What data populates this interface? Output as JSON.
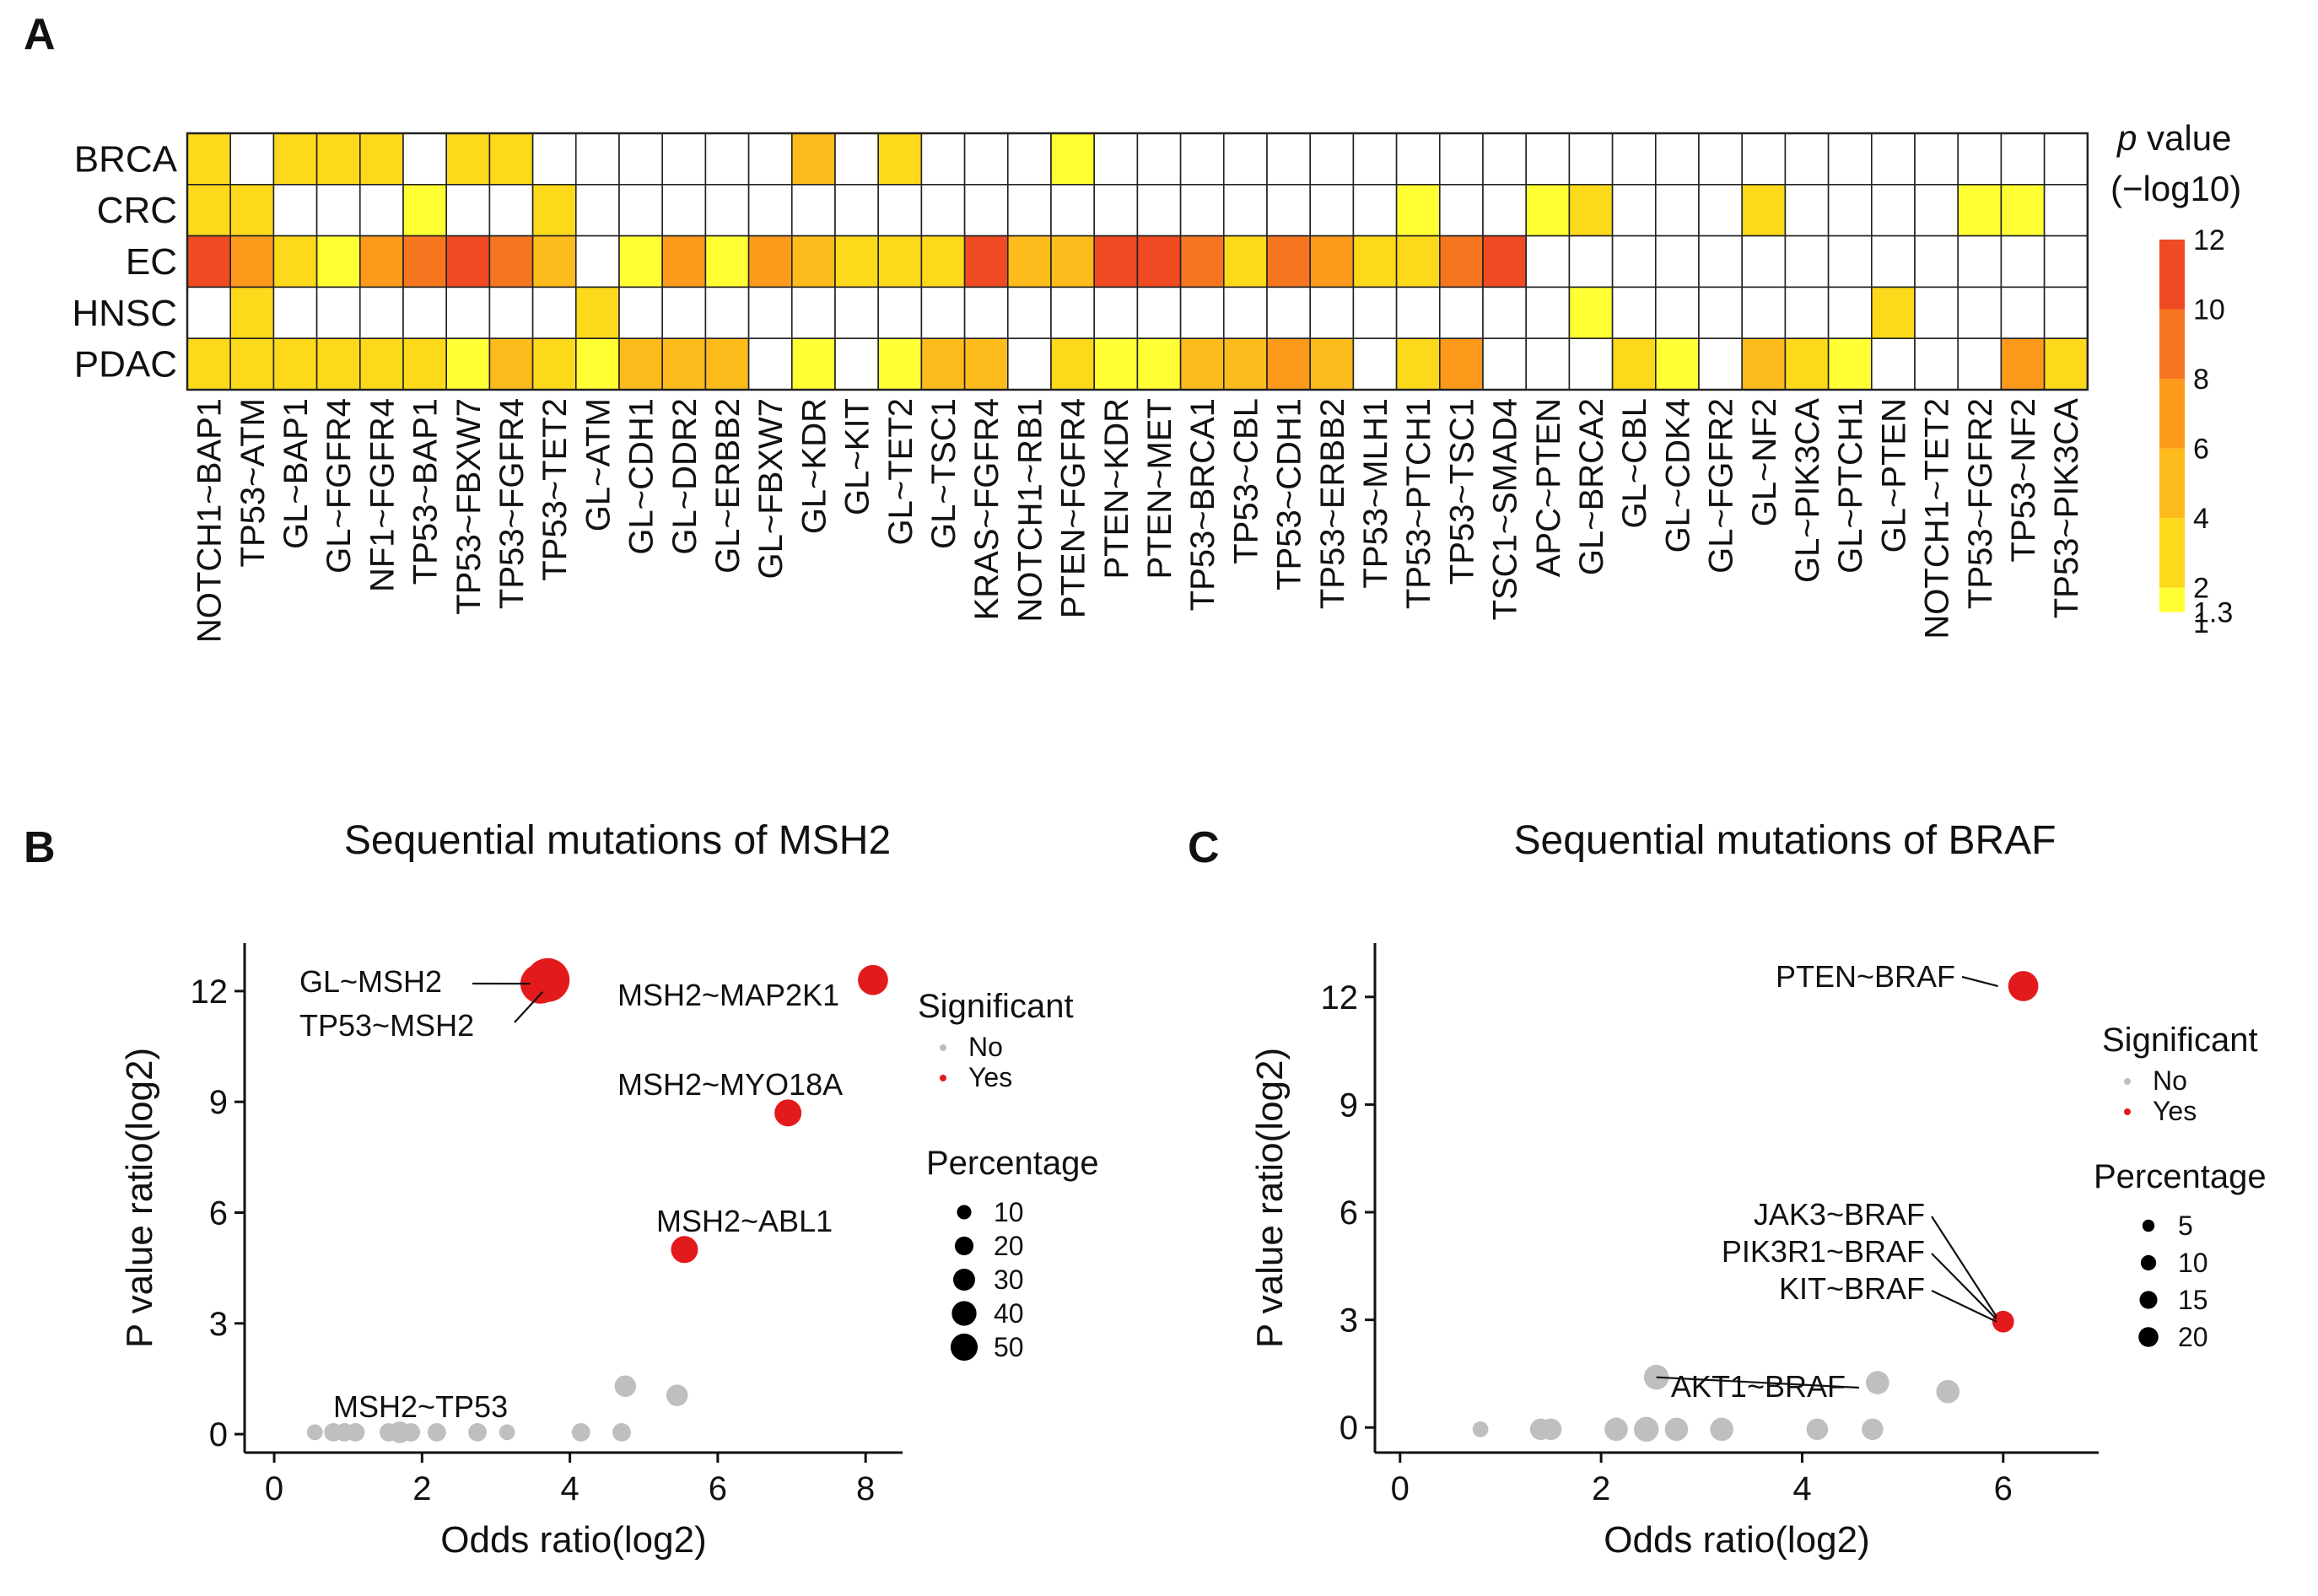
{
  "panels": {
    "a": "A",
    "b": "B",
    "c": "C"
  },
  "heatmap": {
    "rows": [
      "BRCA",
      "CRC",
      "EC",
      "HNSC",
      "PDAC"
    ],
    "columns": [
      "NOTCH1~BAP1",
      "TP53~ATM",
      "GL~BAP1",
      "GL~FGFR4",
      "NF1~FGFR4",
      "TP53~BAP1",
      "TP53~FBXW7",
      "TP53~FGFR4",
      "TP53~TET2",
      "GL~ATM",
      "GL~CDH1",
      "GL~DDR2",
      "GL~ERBB2",
      "GL~FBXW7",
      "GL~KDR",
      "GL~KIT",
      "GL~TET2",
      "GL~TSC1",
      "KRAS~FGFR4",
      "NOTCH1~RB1",
      "PTEN~FGFR4",
      "PTEN~KDR",
      "PTEN~MET",
      "TP53~BRCA1",
      "TP53~CBL",
      "TP53~CDH1",
      "TP53~ERBB2",
      "TP53~MLH1",
      "TP53~PTCH1",
      "TP53~TSC1",
      "TSC1~SMAD4",
      "APC~PTEN",
      "GL~BRCA2",
      "GL~CBL",
      "GL~CDK4",
      "GL~FGFR2",
      "GL~NF2",
      "GL~PIK3CA",
      "GL~PTCH1",
      "GL~PTEN",
      "NOTCH1~TET2",
      "TP53~FGFR2",
      "TP53~NF2",
      "TP53~PIK3CA"
    ],
    "values_neglog10_p": [
      [
        3,
        0,
        3,
        3,
        3,
        0,
        3,
        3,
        0,
        0,
        0,
        0,
        0,
        0,
        5,
        0,
        3,
        0,
        0,
        0,
        1.5,
        0,
        0,
        0,
        0,
        0,
        0,
        0,
        0,
        0,
        0,
        0,
        0,
        0,
        0,
        0,
        0,
        0,
        0,
        0,
        0,
        0,
        0,
        0
      ],
      [
        3,
        3,
        0,
        0,
        0,
        1.5,
        0,
        0,
        3,
        0,
        0,
        0,
        0,
        0,
        0,
        0,
        0,
        0,
        0,
        0,
        0,
        0,
        0,
        0,
        0,
        0,
        0,
        0,
        1.5,
        0,
        0,
        1.5,
        3,
        0,
        0,
        0,
        3,
        0,
        0,
        0,
        0,
        1.5,
        1.5,
        0
      ],
      [
        11,
        7,
        3,
        1.5,
        7,
        9,
        11,
        9,
        5,
        0,
        1.5,
        7,
        1.5,
        7,
        5,
        3,
        3,
        3,
        11,
        5,
        5,
        11,
        11,
        9,
        3,
        9,
        7,
        3,
        3,
        9,
        11,
        0,
        0,
        0,
        0,
        0,
        0,
        0,
        0,
        0,
        0,
        0,
        0,
        0
      ],
      [
        0,
        3,
        0,
        0,
        0,
        0,
        0,
        0,
        0,
        3,
        0,
        0,
        0,
        0,
        0,
        0,
        0,
        0,
        0,
        0,
        0,
        0,
        0,
        0,
        0,
        0,
        0,
        0,
        0,
        0,
        0,
        0,
        1.5,
        0,
        0,
        0,
        0,
        0,
        0,
        3,
        0,
        0,
        0,
        0
      ],
      [
        3,
        3,
        3,
        3,
        3,
        3,
        1.5,
        5,
        3,
        1.5,
        5,
        5,
        5,
        0,
        1.5,
        0,
        1.5,
        5,
        5,
        0,
        3,
        1.5,
        1.5,
        5,
        5,
        7,
        5,
        0,
        3,
        7,
        0,
        0,
        0,
        3,
        1.5,
        0,
        5,
        3,
        1.5,
        0,
        0,
        0,
        7,
        3
      ]
    ],
    "legend": {
      "title_italic": "p",
      "title_rest": " value",
      "title_line2": "(−log10)",
      "ticks": [
        "12",
        "10",
        "8",
        "6",
        "4",
        "2",
        "1.3",
        "1"
      ],
      "tick_values": [
        12,
        10,
        8,
        6,
        4,
        2,
        1.3,
        1
      ],
      "colors": [
        "#ffffff",
        "#ffff33",
        "#fdd91c",
        "#fdbb1c",
        "#fd9a1c",
        "#f6751f",
        "#ef4a21",
        "#e8171c"
      ],
      "bins": [
        1,
        1.3,
        2,
        4,
        6,
        8,
        10,
        12
      ]
    }
  },
  "chart_data": [
    {
      "type": "scatter",
      "title": "Sequential mutations of MSH2",
      "xlabel": "Odds ratio(log2)",
      "ylabel": "P value ratio(log2)",
      "xlim": [
        -0.4,
        8.5
      ],
      "ylim": [
        -0.5,
        13.3
      ],
      "xticks": [
        0,
        2,
        4,
        6,
        8
      ],
      "yticks": [
        0,
        3,
        6,
        9,
        12
      ],
      "points": [
        {
          "x": 3.7,
          "y": 12.3,
          "size": 50,
          "sig": true,
          "label": "TP53~MSH2"
        },
        {
          "x": 3.6,
          "y": 12.2,
          "size": 40,
          "sig": true,
          "label": "GL~MSH2"
        },
        {
          "x": 8.1,
          "y": 12.3,
          "size": 20,
          "sig": true,
          "label": "MSH2~MAP2K1"
        },
        {
          "x": 6.95,
          "y": 8.7,
          "size": 15,
          "sig": true,
          "label": "MSH2~MYO18A"
        },
        {
          "x": 5.55,
          "y": 5.0,
          "size": 15,
          "sig": true,
          "label": "MSH2~ABL1"
        },
        {
          "x": 0.55,
          "y": 0.05,
          "size": 3,
          "sig": false
        },
        {
          "x": 0.8,
          "y": 0.05,
          "size": 5,
          "sig": false,
          "label": "MSH2~TP53"
        },
        {
          "x": 0.95,
          "y": 0.05,
          "size": 5,
          "sig": false
        },
        {
          "x": 1.1,
          "y": 0.05,
          "size": 5,
          "sig": false
        },
        {
          "x": 1.55,
          "y": 0.05,
          "size": 5,
          "sig": false
        },
        {
          "x": 1.7,
          "y": 0.05,
          "size": 8,
          "sig": false
        },
        {
          "x": 1.85,
          "y": 0.05,
          "size": 5,
          "sig": false
        },
        {
          "x": 2.2,
          "y": 0.05,
          "size": 5,
          "sig": false
        },
        {
          "x": 2.75,
          "y": 0.05,
          "size": 5,
          "sig": false
        },
        {
          "x": 3.15,
          "y": 0.05,
          "size": 3,
          "sig": false
        },
        {
          "x": 4.15,
          "y": 0.05,
          "size": 5,
          "sig": false
        },
        {
          "x": 4.7,
          "y": 0.05,
          "size": 5,
          "sig": false
        },
        {
          "x": 4.75,
          "y": 1.3,
          "size": 8,
          "sig": false
        },
        {
          "x": 5.45,
          "y": 1.05,
          "size": 8,
          "sig": false
        }
      ],
      "legend_color": {
        "title": "Significant",
        "items": [
          "No",
          "Yes"
        ],
        "colors": [
          "#bfbfbf",
          "#e31a1c"
        ]
      },
      "legend_size": {
        "title": "Percentage",
        "items": [
          "10",
          "20",
          "30",
          "40",
          "50"
        ],
        "values": [
          10,
          20,
          30,
          40,
          50
        ]
      }
    },
    {
      "type": "scatter",
      "title": "Sequential mutations of BRAF",
      "xlabel": "Odds ratio(log2)",
      "ylabel": "P value ratio(log2)",
      "xlim": [
        -0.25,
        6.95
      ],
      "ylim": [
        -0.7,
        13.5
      ],
      "xticks": [
        0,
        2,
        4,
        6
      ],
      "yticks": [
        0,
        3,
        6,
        9,
        12
      ],
      "points": [
        {
          "x": 6.2,
          "y": 12.3,
          "size": 20,
          "sig": true,
          "label": "PTEN~BRAF"
        },
        {
          "x": 6.0,
          "y": 2.95,
          "size": 8,
          "sig": true,
          "label": "KIT~BRAF"
        },
        {
          "x": 6.0,
          "y": 2.95,
          "size": 8,
          "sig": true,
          "label": "PIK3R1~BRAF"
        },
        {
          "x": 6.0,
          "y": 2.95,
          "size": 8,
          "sig": true,
          "label": "JAK3~BRAF"
        },
        {
          "x": 0.8,
          "y": -0.05,
          "size": 3,
          "sig": false
        },
        {
          "x": 1.4,
          "y": -0.05,
          "size": 8,
          "sig": false
        },
        {
          "x": 1.5,
          "y": -0.05,
          "size": 8,
          "sig": false
        },
        {
          "x": 2.15,
          "y": -0.05,
          "size": 10,
          "sig": false
        },
        {
          "x": 2.45,
          "y": -0.05,
          "size": 12,
          "sig": false
        },
        {
          "x": 2.75,
          "y": -0.05,
          "size": 10,
          "sig": false
        },
        {
          "x": 3.2,
          "y": -0.05,
          "size": 10,
          "sig": false
        },
        {
          "x": 2.55,
          "y": 1.4,
          "size": 12,
          "sig": false,
          "label": "AKT1~BRAF"
        },
        {
          "x": 4.15,
          "y": -0.05,
          "size": 8,
          "sig": false
        },
        {
          "x": 4.7,
          "y": -0.05,
          "size": 8,
          "sig": false
        },
        {
          "x": 4.75,
          "y": 1.25,
          "size": 10,
          "sig": false
        },
        {
          "x": 5.45,
          "y": 1.0,
          "size": 10,
          "sig": false
        }
      ],
      "legend_color": {
        "title": "Significant",
        "items": [
          "No",
          "Yes"
        ],
        "colors": [
          "#bfbfbf",
          "#e31a1c"
        ]
      },
      "legend_size": {
        "title": "Percentage",
        "items": [
          "5",
          "10",
          "15",
          "20"
        ],
        "values": [
          5,
          10,
          15,
          20
        ]
      }
    }
  ]
}
